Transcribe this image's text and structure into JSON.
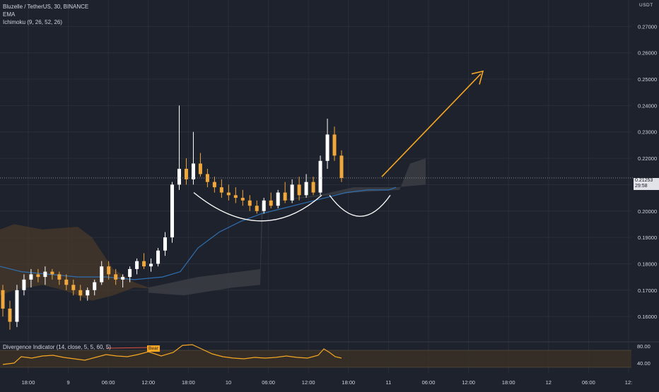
{
  "header": {
    "symbol_line": "Bluzelle / TetherUS, 30, BINANCE",
    "indicator_1": "EMA",
    "indicator_2": "Ichimoku (9, 26, 52, 26)"
  },
  "currency": "USDT",
  "price_label": {
    "price": "0.21253",
    "countdown": "29:58"
  },
  "oscillator": {
    "title": "Divergence Indicator (14, close, 5, 5, 60, 5)",
    "bear_label": "Bear",
    "levels": [
      "80.00",
      "40.00"
    ]
  },
  "colors": {
    "background": "#1e222d",
    "bull": "#ffffff",
    "bear": "#f0a73c",
    "ema": "#2f6fb0",
    "cloud_bear": "#4a3a2a",
    "cloud_bull": "#3a3c44",
    "arrow": "#f5a623",
    "rsi": "#f5a623",
    "band": "#3d3325"
  },
  "chart_data": {
    "type": "candlestick",
    "title": "Bluzelle / TetherUS, 30, BINANCE",
    "y_axis_ticks": [
      "0.27000",
      "0.26000",
      "0.25000",
      "0.24000",
      "0.23000",
      "0.22000",
      "0.21000",
      "0.20000",
      "0.19000",
      "0.18000",
      "0.17000",
      "0.16000"
    ],
    "ylim": [
      0.152,
      0.28
    ],
    "x_axis_ticks": [
      "18:00",
      "9",
      "06:00",
      "12:00",
      "18:00",
      "10",
      "06:00",
      "12:00",
      "18:00",
      "11",
      "06:00",
      "12:00",
      "18:00",
      "12",
      "06:00",
      "12:"
    ],
    "last_price": 0.21253,
    "candles": [
      [
        0.17,
        0.172,
        0.16,
        0.163
      ],
      [
        0.163,
        0.166,
        0.155,
        0.158
      ],
      [
        0.158,
        0.172,
        0.156,
        0.17
      ],
      [
        0.17,
        0.176,
        0.168,
        0.174
      ],
      [
        0.174,
        0.178,
        0.171,
        0.176
      ],
      [
        0.176,
        0.178,
        0.173,
        0.175
      ],
      [
        0.175,
        0.179,
        0.172,
        0.177
      ],
      [
        0.177,
        0.178,
        0.174,
        0.176
      ],
      [
        0.176,
        0.177,
        0.172,
        0.174
      ],
      [
        0.174,
        0.176,
        0.17,
        0.172
      ],
      [
        0.172,
        0.174,
        0.168,
        0.17
      ],
      [
        0.17,
        0.172,
        0.166,
        0.168
      ],
      [
        0.168,
        0.171,
        0.166,
        0.17
      ],
      [
        0.17,
        0.174,
        0.168,
        0.173
      ],
      [
        0.173,
        0.181,
        0.172,
        0.179
      ],
      [
        0.179,
        0.181,
        0.174,
        0.176
      ],
      [
        0.176,
        0.178,
        0.172,
        0.174
      ],
      [
        0.174,
        0.176,
        0.171,
        0.175
      ],
      [
        0.175,
        0.179,
        0.173,
        0.178
      ],
      [
        0.178,
        0.182,
        0.176,
        0.181
      ],
      [
        0.181,
        0.184,
        0.178,
        0.179
      ],
      [
        0.179,
        0.182,
        0.177,
        0.18
      ],
      [
        0.18,
        0.186,
        0.179,
        0.185
      ],
      [
        0.185,
        0.192,
        0.183,
        0.19
      ],
      [
        0.19,
        0.211,
        0.188,
        0.21
      ],
      [
        0.21,
        0.24,
        0.208,
        0.216
      ],
      [
        0.216,
        0.22,
        0.21,
        0.212
      ],
      [
        0.212,
        0.23,
        0.21,
        0.218
      ],
      [
        0.218,
        0.222,
        0.213,
        0.214
      ],
      [
        0.214,
        0.216,
        0.209,
        0.211
      ],
      [
        0.211,
        0.213,
        0.207,
        0.209
      ],
      [
        0.209,
        0.212,
        0.205,
        0.207
      ],
      [
        0.207,
        0.21,
        0.204,
        0.206
      ],
      [
        0.206,
        0.209,
        0.203,
        0.205
      ],
      [
        0.205,
        0.208,
        0.202,
        0.204
      ],
      [
        0.204,
        0.206,
        0.2,
        0.202
      ],
      [
        0.202,
        0.204,
        0.199,
        0.2
      ],
      [
        0.2,
        0.205,
        0.199,
        0.204
      ],
      [
        0.204,
        0.207,
        0.201,
        0.202
      ],
      [
        0.202,
        0.208,
        0.201,
        0.207
      ],
      [
        0.207,
        0.211,
        0.203,
        0.204
      ],
      [
        0.204,
        0.212,
        0.203,
        0.21
      ],
      [
        0.21,
        0.213,
        0.204,
        0.206
      ],
      [
        0.206,
        0.214,
        0.205,
        0.211
      ],
      [
        0.211,
        0.213,
        0.206,
        0.207
      ],
      [
        0.207,
        0.221,
        0.206,
        0.219
      ],
      [
        0.219,
        0.235,
        0.216,
        0.229
      ],
      [
        0.229,
        0.232,
        0.219,
        0.221
      ],
      [
        0.221,
        0.223,
        0.211,
        0.2125
      ]
    ]
  }
}
